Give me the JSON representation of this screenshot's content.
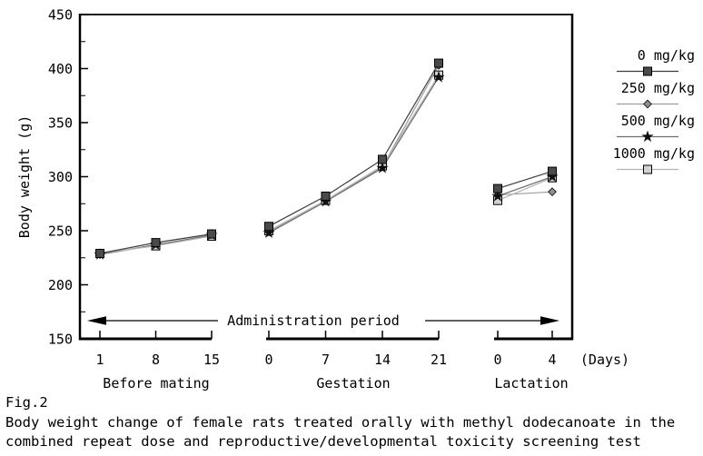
{
  "figure": {
    "fig_label": "Fig.2",
    "caption_line1": "Body weight change of female rats treated orally with methyl dodecanoate in the",
    "caption_line2": "combined repeat dose and reproductive/developmental toxicity screening test"
  },
  "chart_data": {
    "type": "line",
    "title": "",
    "ylabel": "Body weight (g)",
    "ylim": [
      150,
      450
    ],
    "ytick_interval": 50,
    "ytick_labels": [
      "450",
      "400",
      "350",
      "300",
      "250",
      "200",
      "150"
    ],
    "x_unit_label": "(Days)",
    "annotation": "Administration period",
    "legend_position": "right",
    "grid": false,
    "sections": [
      {
        "name": "Before mating",
        "days": [
          1,
          8,
          15
        ]
      },
      {
        "name": "Gestation",
        "days": [
          0,
          7,
          14,
          21
        ]
      },
      {
        "name": "Lactation",
        "days": [
          0,
          4
        ]
      }
    ],
    "series": [
      {
        "name": "0 mg/kg",
        "marker": "square-dark",
        "line_color": "#3c3c3c",
        "marker_fill": "#4a4a4a",
        "values": [
          [
            229,
            239,
            247
          ],
          [
            254,
            282,
            316,
            405
          ],
          [
            289,
            305
          ]
        ]
      },
      {
        "name": "250 mg/kg",
        "marker": "diamond",
        "line_color": "#9c9c9c",
        "marker_fill": "#8f8f8f",
        "values": [
          [
            228,
            237,
            245
          ],
          [
            249,
            278,
            309,
            403
          ],
          [
            283,
            286
          ]
        ]
      },
      {
        "name": "500 mg/kg",
        "marker": "star",
        "line_color": "#6f6f6f",
        "marker_fill": "#111111",
        "values": [
          [
            228,
            237,
            246
          ],
          [
            248,
            277,
            308,
            392
          ],
          [
            282,
            300
          ]
        ]
      },
      {
        "name": "1000 mg/kg",
        "marker": "square-light",
        "line_color": "#b4b4b4",
        "marker_fill": "#d2d2d2",
        "values": [
          [
            229,
            236,
            245
          ],
          [
            250,
            278,
            310,
            394
          ],
          [
            278,
            299
          ]
        ]
      }
    ]
  }
}
